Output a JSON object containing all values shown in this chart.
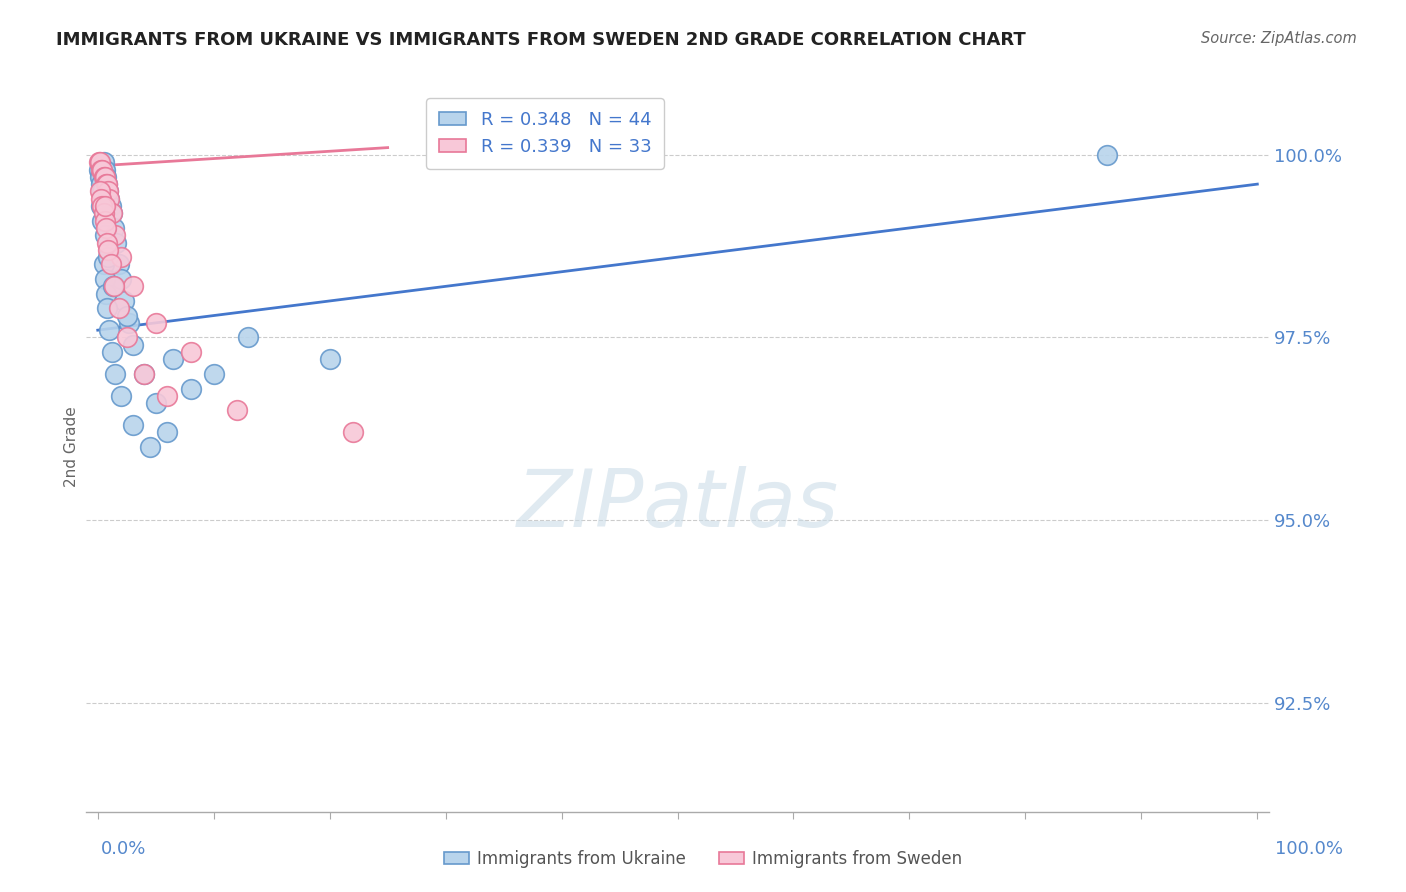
{
  "title": "IMMIGRANTS FROM UKRAINE VS IMMIGRANTS FROM SWEDEN 2ND GRADE CORRELATION CHART",
  "source": "Source: ZipAtlas.com",
  "ylabel": "2nd Grade",
  "ylim": [
    91.0,
    101.0
  ],
  "xlim": [
    -1.0,
    101.0
  ],
  "yticks": [
    92.5,
    95.0,
    97.5,
    100.0
  ],
  "xticks": [
    0.0,
    10.0,
    20.0,
    30.0,
    40.0,
    50.0,
    60.0,
    70.0,
    80.0,
    90.0,
    100.0
  ],
  "ukraine_color": "#b8d4ec",
  "ukraine_edge": "#6699cc",
  "sweden_color": "#f8c8d8",
  "sweden_edge": "#e87898",
  "ukraine_line_color": "#4477cc",
  "sweden_line_color": "#e87898",
  "R_ukraine": 0.348,
  "N_ukraine": 44,
  "R_sweden": 0.339,
  "N_sweden": 33,
  "legend_label_ukraine": "Immigrants from Ukraine",
  "legend_label_sweden": "Immigrants from Sweden",
  "ukraine_x": [
    0.1,
    0.2,
    0.3,
    0.4,
    0.5,
    0.6,
    0.7,
    0.8,
    0.9,
    1.0,
    1.1,
    1.2,
    1.4,
    1.6,
    1.8,
    2.0,
    2.3,
    2.7,
    3.0,
    4.0,
    5.0,
    6.0,
    0.5,
    0.6,
    0.7,
    0.8,
    1.0,
    1.2,
    1.5,
    2.0,
    3.0,
    4.5,
    6.5,
    8.0,
    10.0,
    13.0,
    20.0,
    0.3,
    0.4,
    0.6,
    0.9,
    1.3,
    2.5,
    87.0
  ],
  "ukraine_y": [
    99.8,
    99.7,
    99.6,
    99.5,
    99.9,
    99.8,
    99.7,
    99.6,
    99.5,
    99.4,
    99.3,
    99.2,
    99.0,
    98.8,
    98.5,
    98.3,
    98.0,
    97.7,
    97.4,
    97.0,
    96.6,
    96.2,
    98.5,
    98.3,
    98.1,
    97.9,
    97.6,
    97.3,
    97.0,
    96.7,
    96.3,
    96.0,
    97.2,
    96.8,
    97.0,
    97.5,
    97.2,
    99.3,
    99.1,
    98.9,
    98.6,
    98.2,
    97.8,
    100.0
  ],
  "sweden_x": [
    0.1,
    0.2,
    0.3,
    0.4,
    0.5,
    0.6,
    0.7,
    0.8,
    0.9,
    1.0,
    1.2,
    1.5,
    2.0,
    3.0,
    5.0,
    8.0,
    0.2,
    0.3,
    0.4,
    0.5,
    0.6,
    0.7,
    0.8,
    0.9,
    1.1,
    1.4,
    1.8,
    2.5,
    4.0,
    6.0,
    12.0,
    22.0,
    0.6
  ],
  "sweden_y": [
    99.9,
    99.9,
    99.8,
    99.8,
    99.7,
    99.7,
    99.6,
    99.6,
    99.5,
    99.4,
    99.2,
    98.9,
    98.6,
    98.2,
    97.7,
    97.3,
    99.5,
    99.4,
    99.3,
    99.2,
    99.1,
    99.0,
    98.8,
    98.7,
    98.5,
    98.2,
    97.9,
    97.5,
    97.0,
    96.7,
    96.5,
    96.2,
    99.3
  ],
  "uk_trendline_x": [
    0.0,
    100.0
  ],
  "uk_trendline_y": [
    97.6,
    99.6
  ],
  "sw_trendline_x": [
    0.0,
    25.0
  ],
  "sw_trendline_y": [
    99.85,
    100.1
  ],
  "watermark_text": "ZIPatlas",
  "title_color": "#222222",
  "axis_color": "#5588cc",
  "grid_color": "#cccccc",
  "legend_text_color": "#4477cc"
}
